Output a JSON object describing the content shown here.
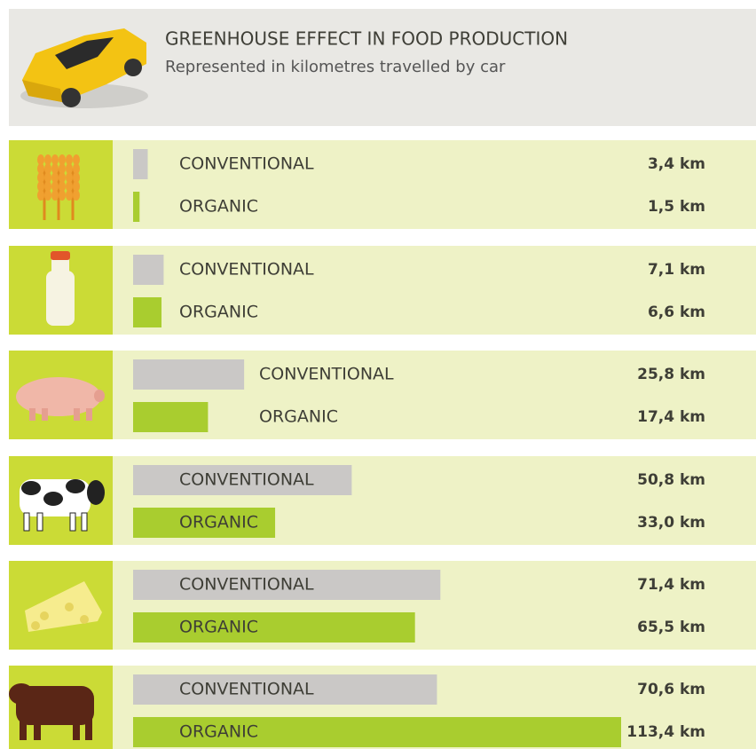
{
  "chart_data": {
    "type": "bar",
    "title": "GREENHOUSE EFFECT IN FOOD PRODUCTION",
    "subtitle": "Represented in kilometres travelled by car",
    "categories": [
      null,
      null,
      null,
      null,
      null,
      null
    ],
    "series": [
      {
        "name": "CONVENTIONAL",
        "color": "#cac8c6",
        "values": [
          3.4,
          7.1,
          25.8,
          50.8,
          71.4,
          70.6
        ],
        "value_labels": [
          "3,4 km",
          "7,1 km",
          "25,8 km",
          "50,8 km",
          "71,4 km",
          "70,6 km"
        ]
      },
      {
        "name": "ORGANIC",
        "color": "#a9cd2f",
        "values": [
          1.5,
          6.6,
          17.4,
          33.0,
          65.5,
          113.4
        ],
        "value_labels": [
          "1,5 km",
          "6,6 km",
          "17,4 km",
          "33,0 km",
          "65,5 km",
          "113,4 km"
        ]
      }
    ]
  }
}
